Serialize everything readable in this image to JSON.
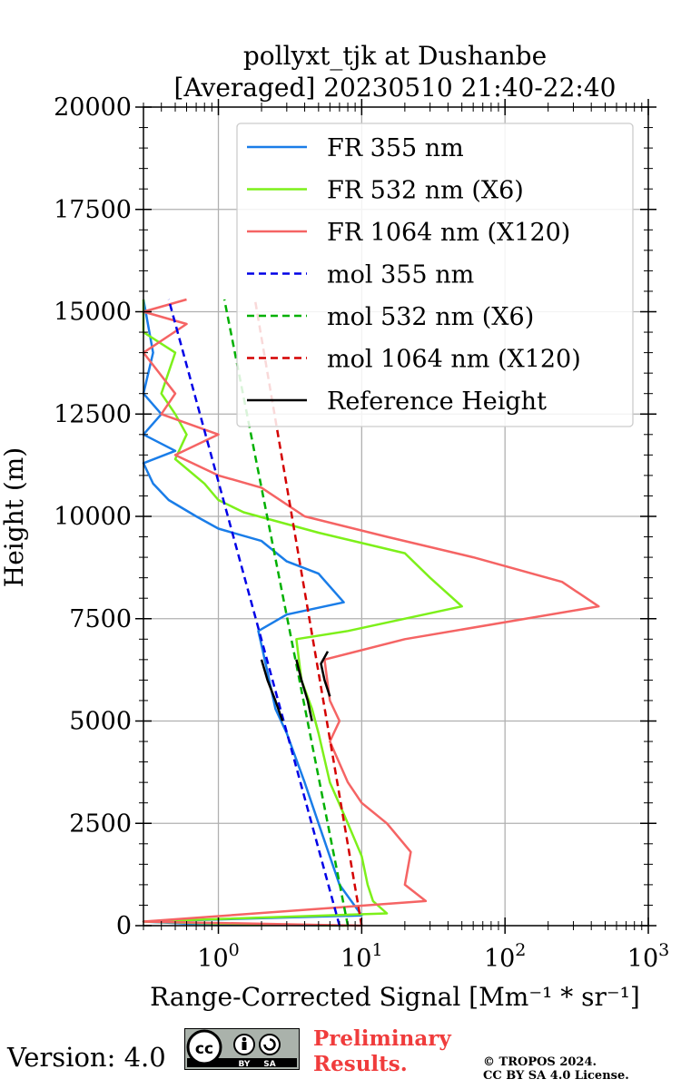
{
  "chart_data": {
    "type": "line",
    "title_line1": "pollyxt_tjk at Dushanbe",
    "title_line2": "[Averaged] 20230510 21:40-22:40",
    "xlabel": "Range-Corrected Signal [Mm⁻¹ * sr⁻¹]",
    "ylabel": "Height (m)",
    "xscale": "log",
    "xlim": [
      0.3,
      1000
    ],
    "ylim": [
      0,
      20000
    ],
    "yticks": [
      0,
      2500,
      5000,
      7500,
      10000,
      12500,
      15000,
      17500,
      20000
    ],
    "ytick_labels": [
      "0",
      "2500",
      "5000",
      "7500",
      "10000",
      "12500",
      "15000",
      "17500",
      "20000"
    ],
    "xtick_labels": [
      {
        "base": "10",
        "exp": "0",
        "value": 1
      },
      {
        "base": "10",
        "exp": "1",
        "value": 10
      },
      {
        "base": "10",
        "exp": "2",
        "value": 100
      },
      {
        "base": "10",
        "exp": "3",
        "value": 1000
      }
    ],
    "grid": true,
    "legend_position": "top-right",
    "series": [
      {
        "name": "FR 355 nm",
        "color": "#1a7de8",
        "style": "solid",
        "points": [
          [
            7.5,
            0
          ],
          [
            0.6,
            50
          ],
          [
            0.3,
            100
          ],
          [
            10,
            250
          ],
          [
            7,
            1000
          ],
          [
            5,
            2500
          ],
          [
            4,
            3500
          ],
          [
            3,
            4700
          ],
          [
            2.5,
            5300
          ],
          [
            2.2,
            6200
          ],
          [
            1.9,
            7200
          ],
          [
            3,
            7600
          ],
          [
            7.5,
            7900
          ],
          [
            5,
            8600
          ],
          [
            3,
            8900
          ],
          [
            2,
            9400
          ],
          [
            1,
            9700
          ],
          [
            0.7,
            10000
          ],
          [
            0.45,
            10400
          ],
          [
            0.35,
            10800
          ],
          [
            0.3,
            11300
          ],
          [
            0.5,
            11600
          ],
          [
            0.3,
            12000
          ],
          [
            0.4,
            12500
          ],
          [
            0.3,
            13000
          ],
          [
            0.35,
            14000
          ],
          [
            0.3,
            15300
          ]
        ]
      },
      {
        "name": "FR 532 nm (X6)",
        "color": "#7df01a",
        "style": "solid",
        "points": [
          [
            8,
            0
          ],
          [
            1,
            50
          ],
          [
            0.3,
            100
          ],
          [
            15,
            300
          ],
          [
            12,
            600
          ],
          [
            11,
            1000
          ],
          [
            10,
            1700
          ],
          [
            8,
            2500
          ],
          [
            6,
            3500
          ],
          [
            5,
            4700
          ],
          [
            4.5,
            5300
          ],
          [
            3.8,
            6000
          ],
          [
            3.5,
            7000
          ],
          [
            8,
            7200
          ],
          [
            50,
            7800
          ],
          [
            30,
            8500
          ],
          [
            20,
            9100
          ],
          [
            5,
            9600
          ],
          [
            1.5,
            10100
          ],
          [
            1,
            10400
          ],
          [
            0.8,
            10800
          ],
          [
            0.5,
            11400
          ],
          [
            0.6,
            12000
          ],
          [
            0.5,
            12500
          ],
          [
            0.4,
            13000
          ],
          [
            0.5,
            14000
          ],
          [
            0.3,
            14500
          ],
          [
            0.3,
            15300
          ]
        ]
      },
      {
        "name": "FR 1064 nm (X120)",
        "color": "#f56464",
        "style": "solid",
        "points": [
          [
            10,
            0
          ],
          [
            0.3,
            100
          ],
          [
            28,
            600
          ],
          [
            20,
            1000
          ],
          [
            22,
            1800
          ],
          [
            15,
            2500
          ],
          [
            10,
            3000
          ],
          [
            8,
            3500
          ],
          [
            6,
            4500
          ],
          [
            7,
            5000
          ],
          [
            6,
            5500
          ],
          [
            5.5,
            6500
          ],
          [
            20,
            7000
          ],
          [
            450,
            7800
          ],
          [
            250,
            8400
          ],
          [
            60,
            9000
          ],
          [
            15,
            9500
          ],
          [
            4,
            10000
          ],
          [
            2,
            10700
          ],
          [
            1,
            11000
          ],
          [
            0.5,
            11500
          ],
          [
            1,
            12000
          ],
          [
            0.4,
            12500
          ],
          [
            0.5,
            13000
          ],
          [
            0.3,
            14000
          ],
          [
            0.6,
            14700
          ],
          [
            0.3,
            15000
          ],
          [
            0.6,
            15300
          ]
        ]
      },
      {
        "name": "mol 355 nm",
        "color": "#0000e6",
        "style": "dashed",
        "points": [
          [
            7,
            0
          ],
          [
            0.45,
            15300
          ]
        ]
      },
      {
        "name": "mol 532 nm (X6)",
        "color": "#00b000",
        "style": "dashed",
        "points": [
          [
            8,
            0
          ],
          [
            1.1,
            15300
          ]
        ]
      },
      {
        "name": "mol 1064 nm (X120)",
        "color": "#d40000",
        "style": "dashed",
        "points": [
          [
            10,
            0
          ],
          [
            1.8,
            15300
          ]
        ]
      },
      {
        "name": "Reference Height",
        "color": "#000000",
        "style": "solid",
        "segments": [
          [
            [
              2.8,
              5000
            ],
            [
              2.5,
              5500
            ],
            [
              2.2,
              6000
            ],
            [
              2.0,
              6500
            ]
          ],
          [
            [
              4.5,
              5000
            ],
            [
              4.2,
              5500
            ],
            [
              3.8,
              6000
            ],
            [
              3.5,
              6500
            ]
          ],
          [
            [
              6.0,
              5600
            ],
            [
              5.5,
              6000
            ],
            [
              5.2,
              6400
            ],
            [
              5.8,
              6700
            ]
          ]
        ]
      }
    ]
  },
  "footer": {
    "version": "Version: 4.0",
    "cc_label": "cc",
    "cc_by": "BY",
    "cc_sa": "SA",
    "preliminary": "Preliminary",
    "results": "Results.",
    "copyright_line1": "© TROPOS 2024.",
    "copyright_line2": "CC BY SA 4.0 License."
  }
}
